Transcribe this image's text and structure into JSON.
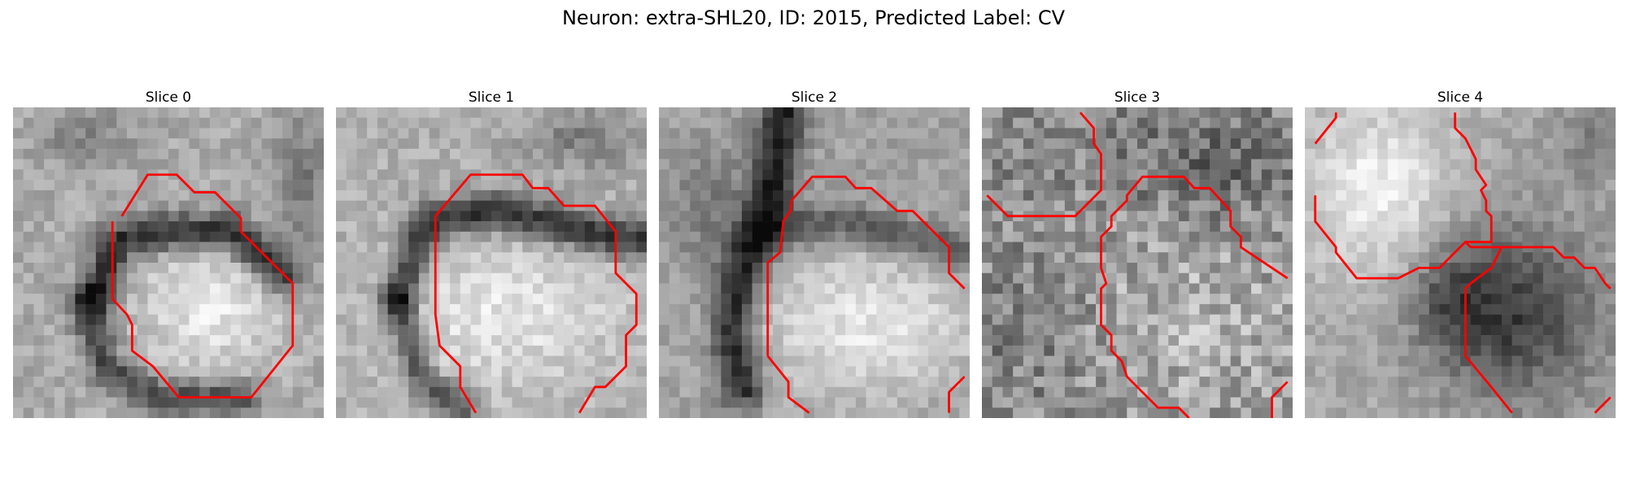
{
  "figure": {
    "title": "Neuron: extra-SHL20, ID: 2015, Predicted Label: CV"
  },
  "panels": [
    {
      "label": "Slice 0"
    },
    {
      "label": "Slice 1"
    },
    {
      "label": "Slice 2"
    },
    {
      "label": "Slice 3"
    },
    {
      "label": "Slice 4"
    }
  ],
  "colors": {
    "contour": "#ff0000",
    "background": "#ffffff"
  }
}
